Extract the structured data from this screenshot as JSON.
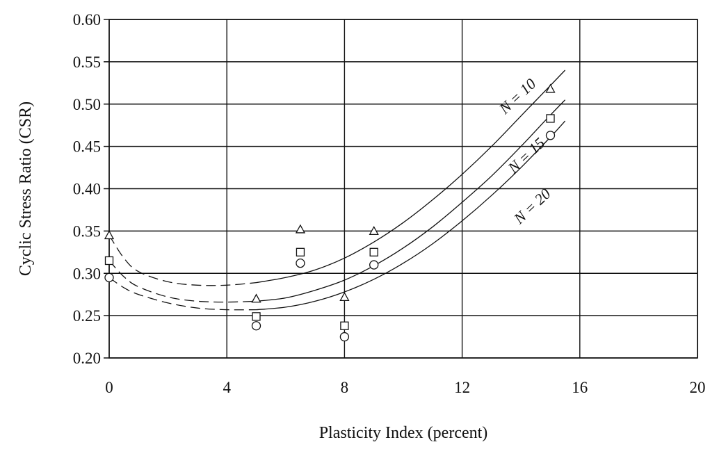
{
  "chart_data": {
    "type": "scatter",
    "title": "",
    "xlabel": "Plasticity Index (percent)",
    "ylabel": "Cyclic Stress Ratio (CSR)",
    "xlim": [
      0,
      20
    ],
    "ylim": [
      0.2,
      0.6
    ],
    "x_ticks": [
      0,
      4,
      8,
      12,
      16,
      20
    ],
    "x_tick_labels": [
      "0",
      "4",
      "8",
      "12",
      "16",
      "20"
    ],
    "y_ticks": [
      0.2,
      0.25,
      0.3,
      0.35,
      0.4,
      0.45,
      0.5,
      0.55,
      0.6
    ],
    "y_tick_labels": [
      "0.20",
      "0.25",
      "0.30",
      "0.35",
      "0.40",
      "0.45",
      "0.50",
      "0.55",
      "0.60"
    ],
    "grid": true,
    "legend": "none",
    "series": [
      {
        "label": "N = 10",
        "marker": "triangle",
        "points": [
          [
            0,
            0.345
          ],
          [
            5,
            0.27
          ],
          [
            6.5,
            0.352
          ],
          [
            8,
            0.272
          ],
          [
            9,
            0.35
          ],
          [
            15,
            0.518
          ]
        ],
        "fit_dashed": [
          [
            0,
            0.345
          ],
          [
            0.5,
            0.318
          ],
          [
            1,
            0.302
          ],
          [
            2,
            0.29
          ],
          [
            3,
            0.286
          ],
          [
            4,
            0.286
          ],
          [
            5,
            0.289
          ]
        ],
        "fit_solid": [
          [
            5,
            0.289
          ],
          [
            6,
            0.295
          ],
          [
            7,
            0.304
          ],
          [
            8,
            0.318
          ],
          [
            9,
            0.337
          ],
          [
            10,
            0.36
          ],
          [
            11,
            0.387
          ],
          [
            12,
            0.417
          ],
          [
            13,
            0.45
          ],
          [
            14,
            0.486
          ],
          [
            15,
            0.522
          ],
          [
            15.5,
            0.54
          ]
        ]
      },
      {
        "label": "N = 15",
        "marker": "square",
        "points": [
          [
            0,
            0.315
          ],
          [
            5,
            0.249
          ],
          [
            6.5,
            0.325
          ],
          [
            8,
            0.238
          ],
          [
            9,
            0.325
          ],
          [
            15,
            0.483
          ]
        ],
        "fit_dashed": [
          [
            0,
            0.315
          ],
          [
            0.5,
            0.296
          ],
          [
            1,
            0.284
          ],
          [
            2,
            0.272
          ],
          [
            3,
            0.267
          ],
          [
            4,
            0.266
          ],
          [
            5,
            0.267
          ]
        ],
        "fit_solid": [
          [
            5,
            0.267
          ],
          [
            6,
            0.271
          ],
          [
            7,
            0.28
          ],
          [
            8,
            0.292
          ],
          [
            9,
            0.309
          ],
          [
            10,
            0.33
          ],
          [
            11,
            0.355
          ],
          [
            12,
            0.384
          ],
          [
            13,
            0.415
          ],
          [
            14,
            0.45
          ],
          [
            15,
            0.487
          ],
          [
            15.5,
            0.505
          ]
        ]
      },
      {
        "label": "N = 20",
        "marker": "circle",
        "points": [
          [
            0,
            0.295
          ],
          [
            5,
            0.238
          ],
          [
            6.5,
            0.312
          ],
          [
            8,
            0.225
          ],
          [
            9,
            0.31
          ],
          [
            15,
            0.463
          ]
        ],
        "fit_dashed": [
          [
            0,
            0.295
          ],
          [
            0.5,
            0.283
          ],
          [
            1,
            0.275
          ],
          [
            2,
            0.265
          ],
          [
            3,
            0.259
          ],
          [
            4,
            0.257
          ],
          [
            5,
            0.257
          ]
        ],
        "fit_solid": [
          [
            5,
            0.257
          ],
          [
            6,
            0.26
          ],
          [
            7,
            0.267
          ],
          [
            8,
            0.278
          ],
          [
            9,
            0.293
          ],
          [
            10,
            0.312
          ],
          [
            11,
            0.335
          ],
          [
            12,
            0.362
          ],
          [
            13,
            0.392
          ],
          [
            14,
            0.425
          ],
          [
            15,
            0.461
          ],
          [
            15.5,
            0.48
          ]
        ]
      }
    ],
    "annotations": [
      {
        "text": "N = 10",
        "x": 14.0,
        "y": 0.505
      },
      {
        "text": "N = 15",
        "x": 14.3,
        "y": 0.435
      },
      {
        "text": "N = 20",
        "x": 14.5,
        "y": 0.375
      }
    ]
  }
}
